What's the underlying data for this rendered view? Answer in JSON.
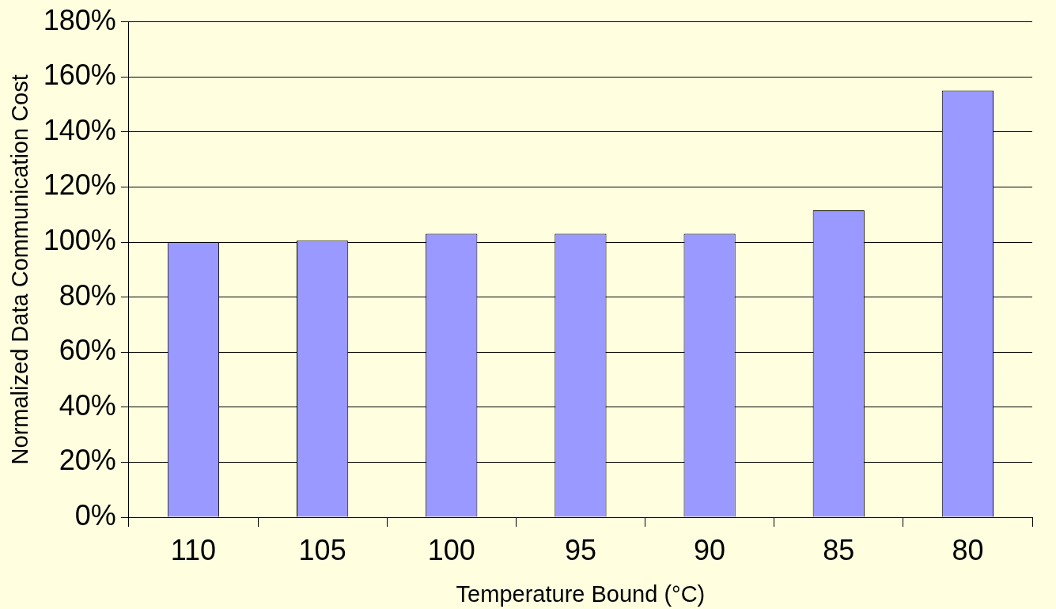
{
  "chart_data": {
    "type": "bar",
    "xlabel": "Temperature Bound (°C)",
    "ylabel": "Normalized Data Communication Cost",
    "categories": [
      "110",
      "105",
      "100",
      "95",
      "90",
      "85",
      "80"
    ],
    "values": [
      100,
      100.5,
      103,
      103,
      103,
      111.5,
      155
    ],
    "color": "#9999ff",
    "ylim": [
      0,
      180
    ],
    "yticks": [
      {
        "value": 0,
        "label": "0%"
      },
      {
        "value": 20,
        "label": "20%"
      },
      {
        "value": 40,
        "label": "40%"
      },
      {
        "value": 60,
        "label": "60%"
      },
      {
        "value": 80,
        "label": "80%"
      },
      {
        "value": 100,
        "label": "100%"
      },
      {
        "value": 120,
        "label": "120%"
      },
      {
        "value": 140,
        "label": "140%"
      },
      {
        "value": 160,
        "label": "160%"
      },
      {
        "value": 180,
        "label": "180%"
      }
    ],
    "grid": "y",
    "legend": false
  }
}
